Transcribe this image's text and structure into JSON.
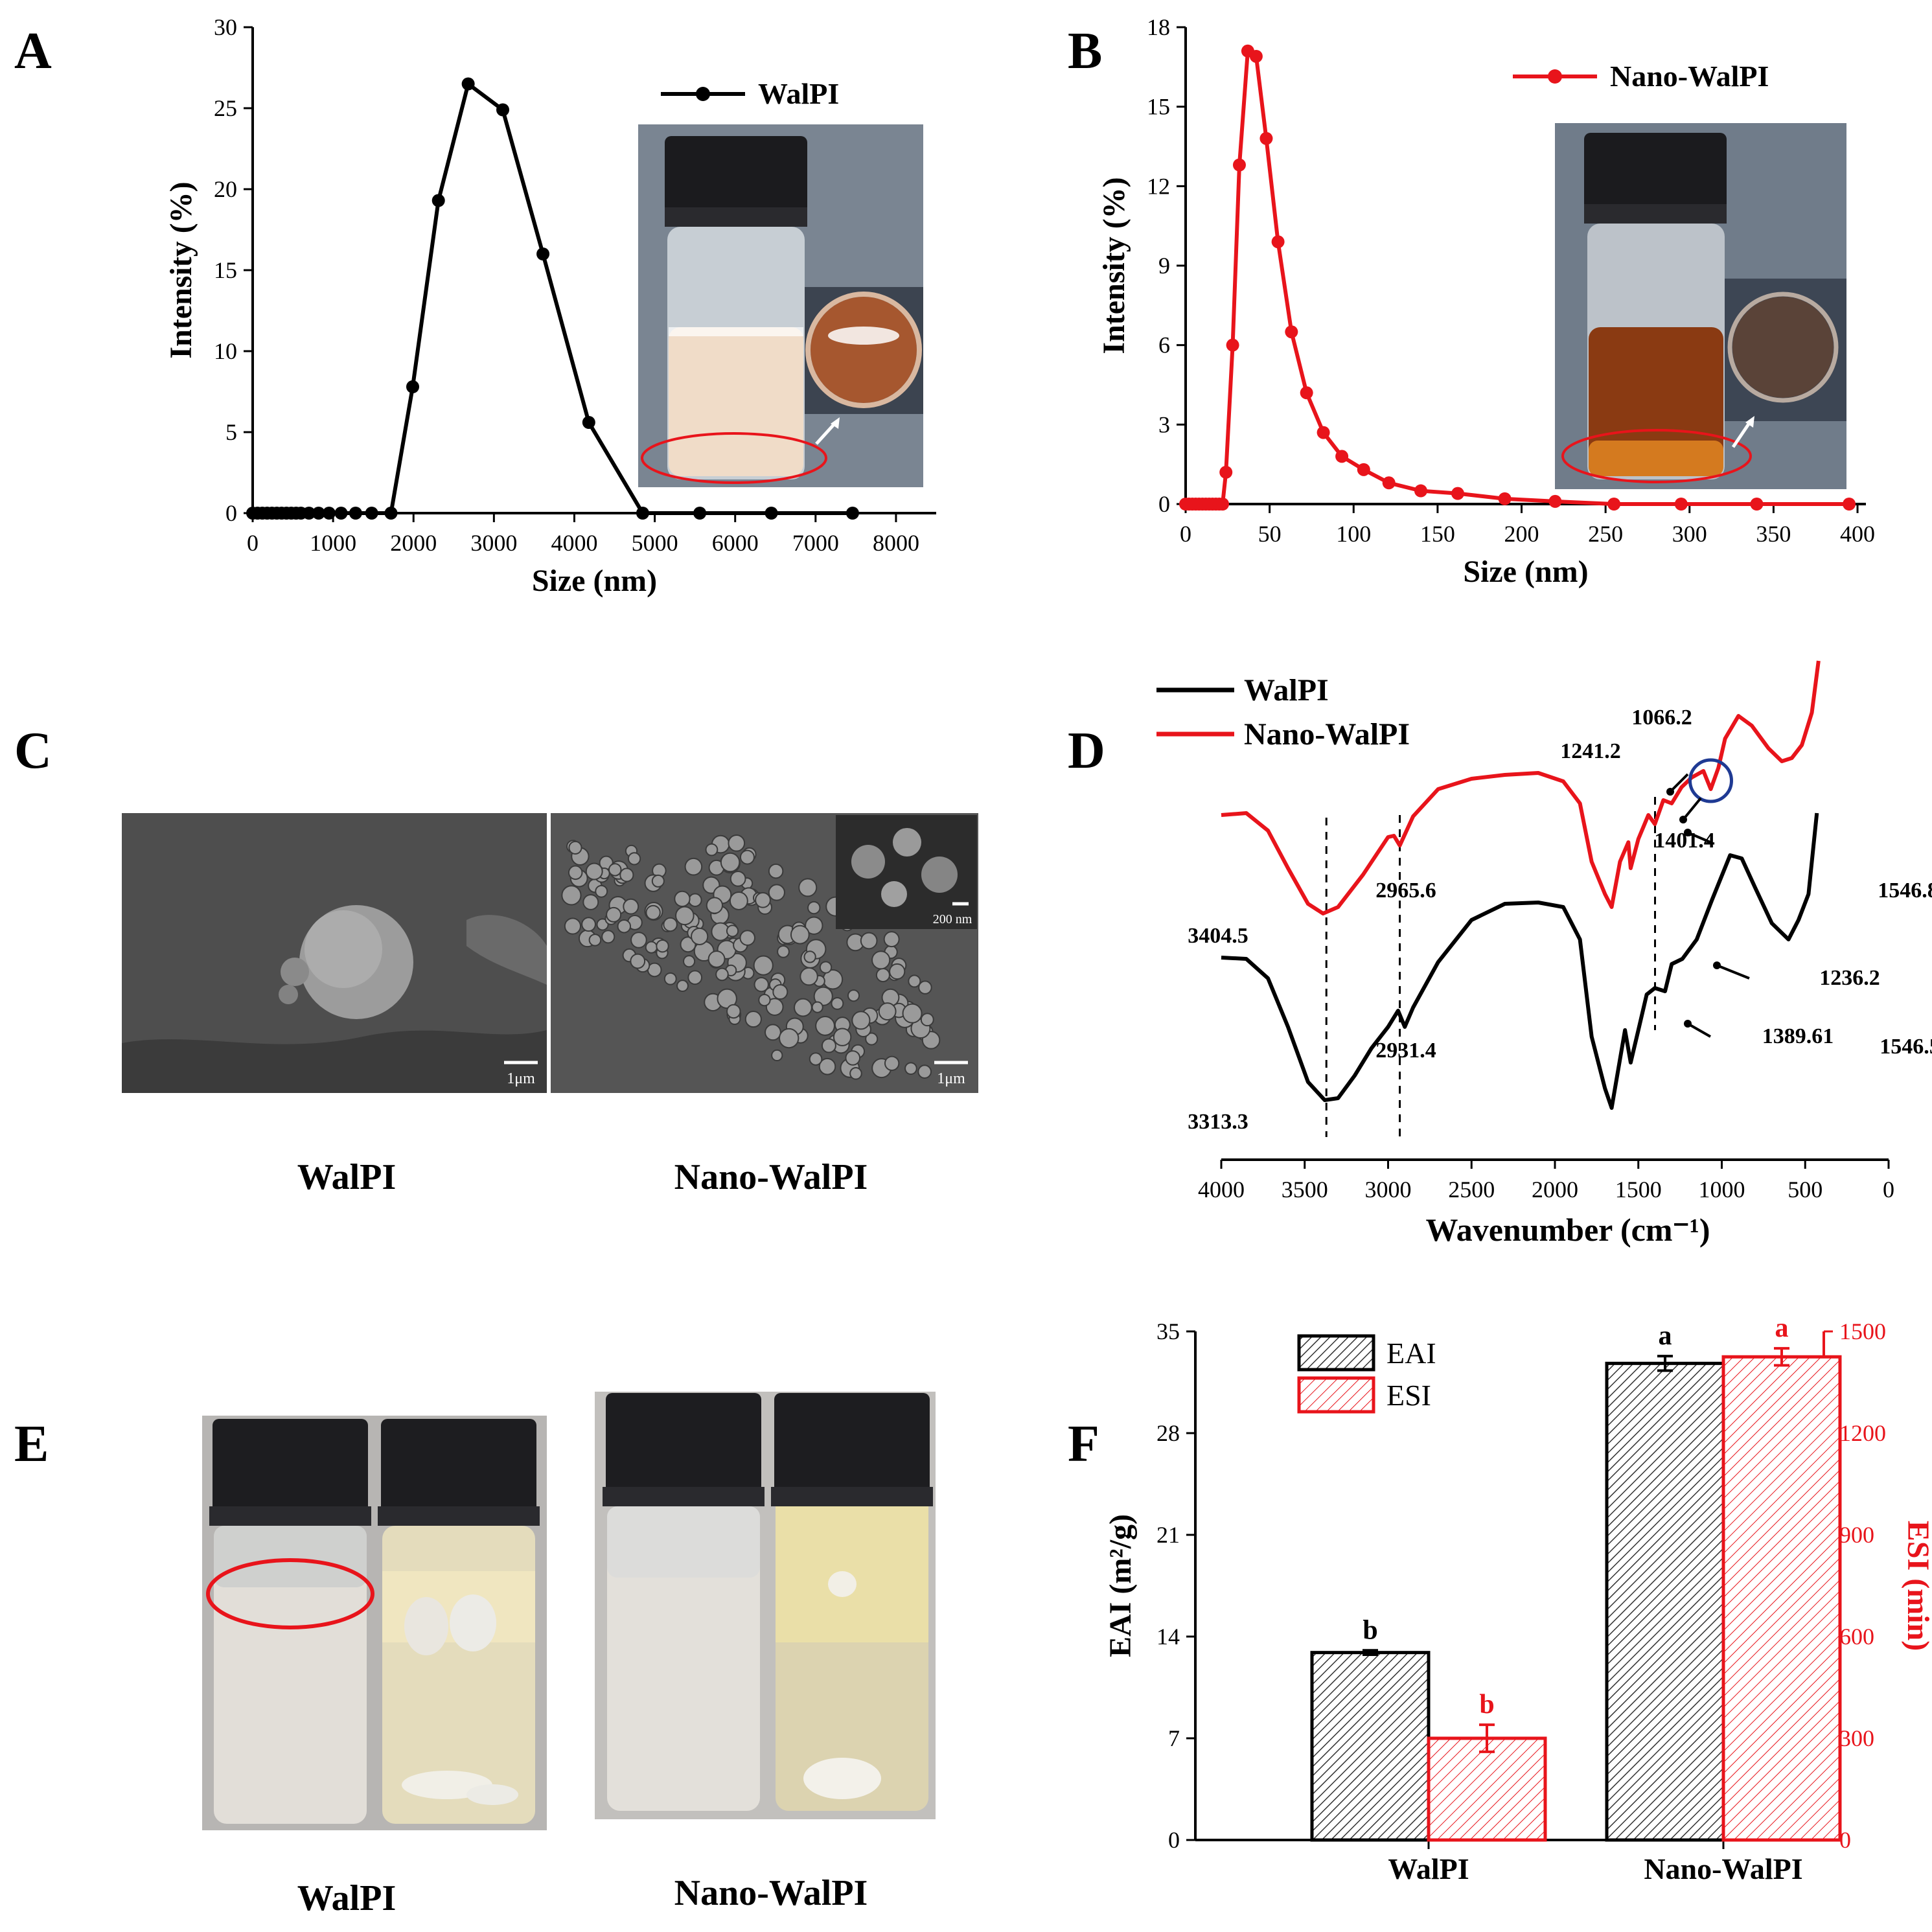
{
  "panels": {
    "A": {
      "letter": "A"
    },
    "B": {
      "letter": "B"
    },
    "C": {
      "letter": "C",
      "captions": [
        "WalPI",
        "Nano-WalPI"
      ],
      "scale_bars": [
        "1μm",
        "1μm",
        "200 nm"
      ]
    },
    "D": {
      "letter": "D"
    },
    "E": {
      "letter": "E",
      "captions": [
        "WalPI",
        "Nano-WalPI"
      ]
    },
    "F": {
      "letter": "F"
    }
  },
  "colors": {
    "black": "#000000",
    "red": "#e8141b",
    "blue": "#1f3a93"
  },
  "chart_data": [
    {
      "id": "A",
      "type": "line",
      "title": "",
      "xlabel": "Size (nm)",
      "ylabel": "Intensity (%)",
      "xlim": [
        0,
        8500
      ],
      "ylim": [
        0,
        30
      ],
      "xticks": [
        0,
        1000,
        2000,
        3000,
        4000,
        5000,
        6000,
        7000,
        8000
      ],
      "yticks": [
        0,
        5,
        10,
        15,
        20,
        25,
        30
      ],
      "series": [
        {
          "name": "WalPI",
          "color": "#000000",
          "x": [
            0,
            60,
            120,
            180,
            240,
            300,
            360,
            420,
            480,
            540,
            600,
            700,
            820,
            950,
            1100,
            1280,
            1480,
            1720,
            1990,
            2310,
            2680,
            3110,
            3610,
            4180,
            4850,
            5560,
            6450,
            7460
          ],
          "y": [
            0,
            0,
            0,
            0,
            0,
            0,
            0,
            0,
            0,
            0,
            0,
            0,
            0,
            0,
            0,
            0,
            0,
            0,
            7.8,
            19.3,
            26.5,
            24.9,
            16.0,
            5.6,
            0,
            0,
            0,
            0
          ]
        }
      ]
    },
    {
      "id": "B",
      "type": "line",
      "title": "",
      "xlabel": "Size (nm)",
      "ylabel": "Intensity (%)",
      "xlim": [
        0,
        405
      ],
      "ylim": [
        0,
        18
      ],
      "xticks": [
        0,
        50,
        100,
        150,
        200,
        250,
        300,
        350,
        400
      ],
      "yticks": [
        0,
        3,
        6,
        9,
        12,
        15,
        18
      ],
      "series": [
        {
          "name": "Nano-WalPI",
          "color": "#e8141b",
          "x": [
            0,
            2,
            4,
            6,
            8,
            10,
            12,
            14,
            16,
            18,
            20,
            22,
            24,
            28,
            32,
            37,
            42,
            48,
            55,
            63,
            72,
            82,
            93,
            106,
            121,
            140,
            162,
            190,
            220,
            255,
            295,
            340,
            395
          ],
          "y": [
            0,
            0,
            0,
            0,
            0,
            0,
            0,
            0,
            0,
            0,
            0,
            0,
            1.2,
            6.0,
            12.8,
            17.1,
            16.9,
            13.8,
            9.9,
            6.5,
            4.2,
            2.7,
            1.8,
            1.3,
            0.8,
            0.5,
            0.4,
            0.2,
            0.1,
            0,
            0,
            0,
            0
          ]
        }
      ]
    },
    {
      "id": "D",
      "type": "line",
      "title": "",
      "xlabel": "Wavenumber (cm⁻¹)",
      "ylabel": "",
      "xlim": [
        4000,
        0
      ],
      "xticks": [
        4000,
        3500,
        3000,
        2500,
        2000,
        1500,
        1000,
        500,
        0
      ],
      "series": [
        {
          "name": "WalPI",
          "color": "#000000"
        },
        {
          "name": "Nano-WalPI",
          "color": "#e8141b"
        }
      ],
      "annotations_red": [
        "3404.5",
        "2965.6",
        "1546.8",
        "1401.4",
        "1241.2",
        "1066.2"
      ],
      "annotations_black": [
        "3313.3",
        "2931.4",
        "1546.5",
        "1389.61",
        "1236.2"
      ]
    },
    {
      "id": "F",
      "type": "bar",
      "title": "",
      "categories": [
        "WalPI",
        "Nano-WalPI"
      ],
      "ylabel": "EAI (m²/g)",
      "y2label": "ESI (min)",
      "ylim": [
        0,
        35
      ],
      "y2lim": [
        0,
        1500
      ],
      "yticks": [
        0,
        7,
        14,
        21,
        28,
        35
      ],
      "y2ticks": [
        0,
        300,
        600,
        900,
        1200,
        1500
      ],
      "series": [
        {
          "name": "EAI",
          "axis": "left",
          "color": "#000000",
          "values": [
            12.9,
            32.8
          ],
          "errors": [
            0.15,
            0.5
          ],
          "letters": [
            "b",
            "a"
          ]
        },
        {
          "name": "ESI",
          "axis": "right",
          "color": "#e8141b",
          "values": [
            300,
            1425
          ],
          "errors": [
            40,
            25
          ],
          "letters": [
            "b",
            "a"
          ]
        }
      ]
    }
  ]
}
